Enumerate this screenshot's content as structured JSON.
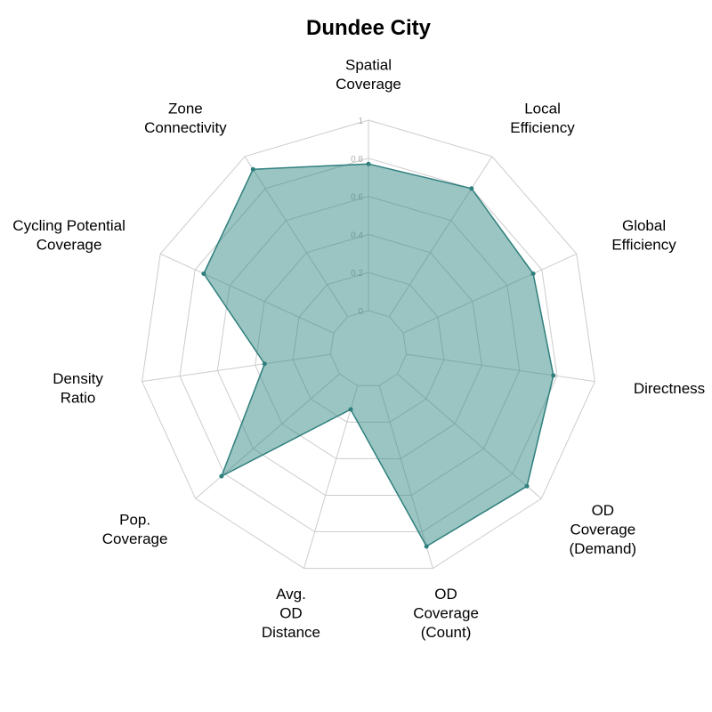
{
  "chart_data": {
    "type": "radar",
    "title": "Dundee City",
    "axes": [
      [
        "Spatial",
        "Coverage"
      ],
      [
        "Local",
        "Efficiency"
      ],
      [
        "Global",
        "Efficiency"
      ],
      [
        "Directness"
      ],
      [
        "OD",
        "Coverage",
        "(Demand)"
      ],
      [
        "OD",
        "Coverage",
        "(Count)"
      ],
      [
        "Avg.",
        "OD",
        "Distance"
      ],
      [
        "Pop.",
        "Coverage"
      ],
      [
        "Density",
        "Ratio"
      ],
      [
        "Cycling Potential",
        "Coverage"
      ],
      [
        "Zone",
        "Connectivity"
      ]
    ],
    "rlim": [
      0,
      1
    ],
    "radial_ticks": [
      "0",
      "0.2",
      "0.4",
      "0.6",
      "0.8",
      "1"
    ],
    "series": [
      {
        "values": [
          0.77,
          0.8,
          0.75,
          0.78,
          0.9,
          0.88,
          0.13,
          0.82,
          0.35,
          0.75,
          0.92
        ],
        "fill": "#2e8582",
        "fill_opacity": 0.48,
        "stroke": "#2e7f7d"
      }
    ],
    "grid": true
  }
}
